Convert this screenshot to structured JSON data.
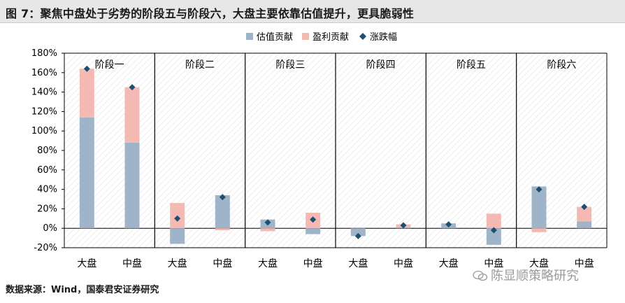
{
  "header": {
    "title": "图 7：聚焦中盘处于劣势的阶段五与阶段六，大盘主要依靠估值提升，更具脆弱性"
  },
  "footer": {
    "source": "数据来源：Wind，国泰君安证券研究"
  },
  "watermark": {
    "text": "陈显顺策略研究",
    "icon": "wechat-icon"
  },
  "chart_data": {
    "type": "bar",
    "stacked": true,
    "ylim": [
      -20,
      180
    ],
    "yticks": [
      "-20%",
      "0%",
      "20%",
      "40%",
      "60%",
      "80%",
      "100%",
      "120%",
      "140%",
      "160%",
      "180%"
    ],
    "legend_position": "top",
    "grid": false,
    "panels": [
      "阶段一",
      "阶段二",
      "阶段三",
      "阶段四",
      "阶段五",
      "阶段六"
    ],
    "categories": [
      "大盘",
      "中盘",
      "大盘",
      "中盘",
      "大盘",
      "中盘",
      "大盘",
      "中盘",
      "大盘",
      "中盘",
      "大盘",
      "中盘"
    ],
    "series": [
      {
        "name": "估值贡献",
        "kind": "bar",
        "color": "#9fb4c8",
        "values": [
          114,
          88,
          -16,
          34,
          9,
          -6,
          -8,
          1,
          5,
          -17,
          43,
          7
        ]
      },
      {
        "name": "盈利贡献",
        "kind": "bar",
        "color": "#f4b9b2",
        "values": [
          50,
          57,
          26,
          -2,
          -3,
          16,
          0,
          3,
          0,
          15,
          -4,
          15
        ]
      },
      {
        "name": "涨跌幅",
        "kind": "marker",
        "color": "#1f4e6e",
        "values": [
          164,
          145,
          10,
          32,
          6,
          9,
          -8,
          3,
          4,
          -2,
          40,
          22
        ]
      }
    ]
  }
}
